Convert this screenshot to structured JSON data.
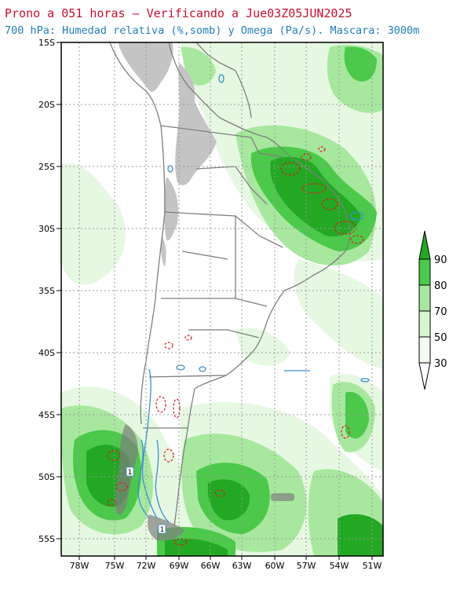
{
  "header": {
    "title_line1": "Prono a 051 horas — Verificando a Jue03Z05JUN2025",
    "title_line2": "700 hPa: Humedad relativa (%,somb) y Omega (Pa/s). Mascara: 3000m"
  },
  "axes": {
    "lat_labels": [
      "15S",
      "20S",
      "25S",
      "30S",
      "35S",
      "40S",
      "45S",
      "50S",
      "55S"
    ],
    "lon_labels": [
      "78W",
      "75W",
      "72W",
      "69W",
      "66W",
      "63W",
      "60W",
      "57W",
      "54W",
      "51W"
    ]
  },
  "colorbar": {
    "levels": [
      "30",
      "50",
      "70",
      "80",
      "90"
    ],
    "colors": [
      "#f2fcf0",
      "#d8f5d2",
      "#a7e89e",
      "#6fd468",
      "#3ebf3c",
      "#1fa51f"
    ]
  },
  "contour_labels": [
    "1",
    "1"
  ],
  "colors": {
    "title_red": "#c8102e",
    "title_blue": "#1f7fb8",
    "rh_light": "#e6f8e2",
    "rh_mid": "#a7e89e",
    "rh_high": "#4cc94a",
    "rh_max": "#22a822",
    "mask_gray": "#c4c4c4",
    "land_gray": "#7f7f7f",
    "omega_red": "#d62020",
    "omega_blue": "#3a8fd0"
  }
}
